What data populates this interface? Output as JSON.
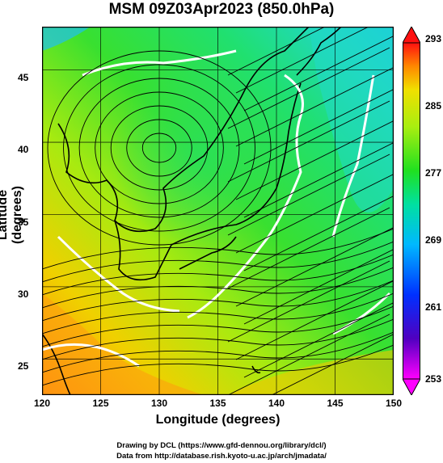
{
  "title": "MSM 09Z03Apr2023 (850.0hPa)",
  "x_axis": {
    "label": "Longitude (degrees)",
    "ticks": [
      "120",
      "125",
      "130",
      "135",
      "140",
      "145",
      "150"
    ],
    "range": [
      120,
      150
    ]
  },
  "y_axis": {
    "label": "Latitude  (degrees)",
    "ticks": [
      "25",
      "30",
      "35",
      "40",
      "45"
    ],
    "range": [
      22.5,
      48
    ]
  },
  "colorbar": {
    "ticks": [
      "293",
      "285",
      "277",
      "269",
      "261",
      "253"
    ],
    "range": [
      253,
      293
    ],
    "colors": [
      "#ff00ff",
      "#3300cc",
      "#0033ff",
      "#00c8ff",
      "#00e0a0",
      "#20e020",
      "#9aee10",
      "#e8f000",
      "#ffa000",
      "#ff2000"
    ]
  },
  "credits": {
    "line1": "Drawing by DCL (https://www.gfd-dennou.org/library/dcl/)",
    "line2": "Data from http://database.rish.kyoto-u.ac.jp/arch/jmadata/"
  },
  "colors": {
    "field_warm": "#ff9900",
    "field_mid": "#30e030",
    "field_cool": "#20d0e0",
    "contour": "#ffffff",
    "stream": "#000000"
  }
}
